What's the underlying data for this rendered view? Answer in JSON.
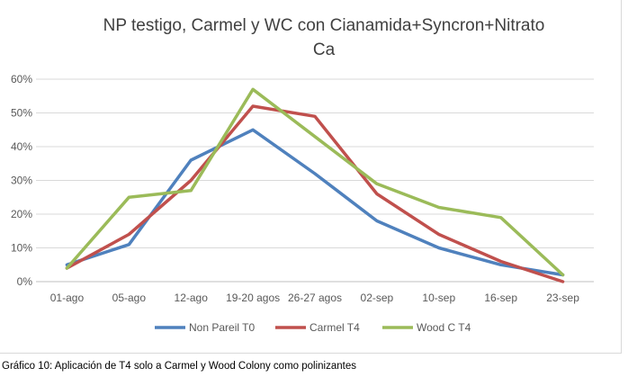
{
  "chart_data": {
    "type": "line",
    "title_lines": [
      "NP testigo, Carmel y WC con Cianamida+Syncron+Nitrato",
      "Ca"
    ],
    "categories": [
      "01-ago",
      "05-ago",
      "12-ago",
      "19-20 agos",
      "26-27 agos",
      "02-sep",
      "10-sep",
      "16-sep",
      "23-sep"
    ],
    "y_ticks": [
      "0%",
      "10%",
      "20%",
      "30%",
      "40%",
      "50%",
      "60%"
    ],
    "ylim": [
      0,
      60
    ],
    "grid": true,
    "legend_position": "bottom",
    "series": [
      {
        "name": "Non Pareil T0",
        "color": "#4f81bd",
        "values": [
          5,
          11,
          36,
          45,
          32,
          18,
          10,
          5,
          2
        ]
      },
      {
        "name": "Carmel T4",
        "color": "#c0504d",
        "values": [
          4,
          14,
          30,
          52,
          49,
          26,
          14,
          6,
          0
        ]
      },
      {
        "name": "Wood C T4",
        "color": "#9bbb59",
        "values": [
          4,
          25,
          27,
          57,
          43,
          29,
          22,
          19,
          2
        ]
      }
    ]
  },
  "caption": "Gráfico 10: Aplicación de  T4 solo a Carmel y Wood Colony como polinizantes"
}
